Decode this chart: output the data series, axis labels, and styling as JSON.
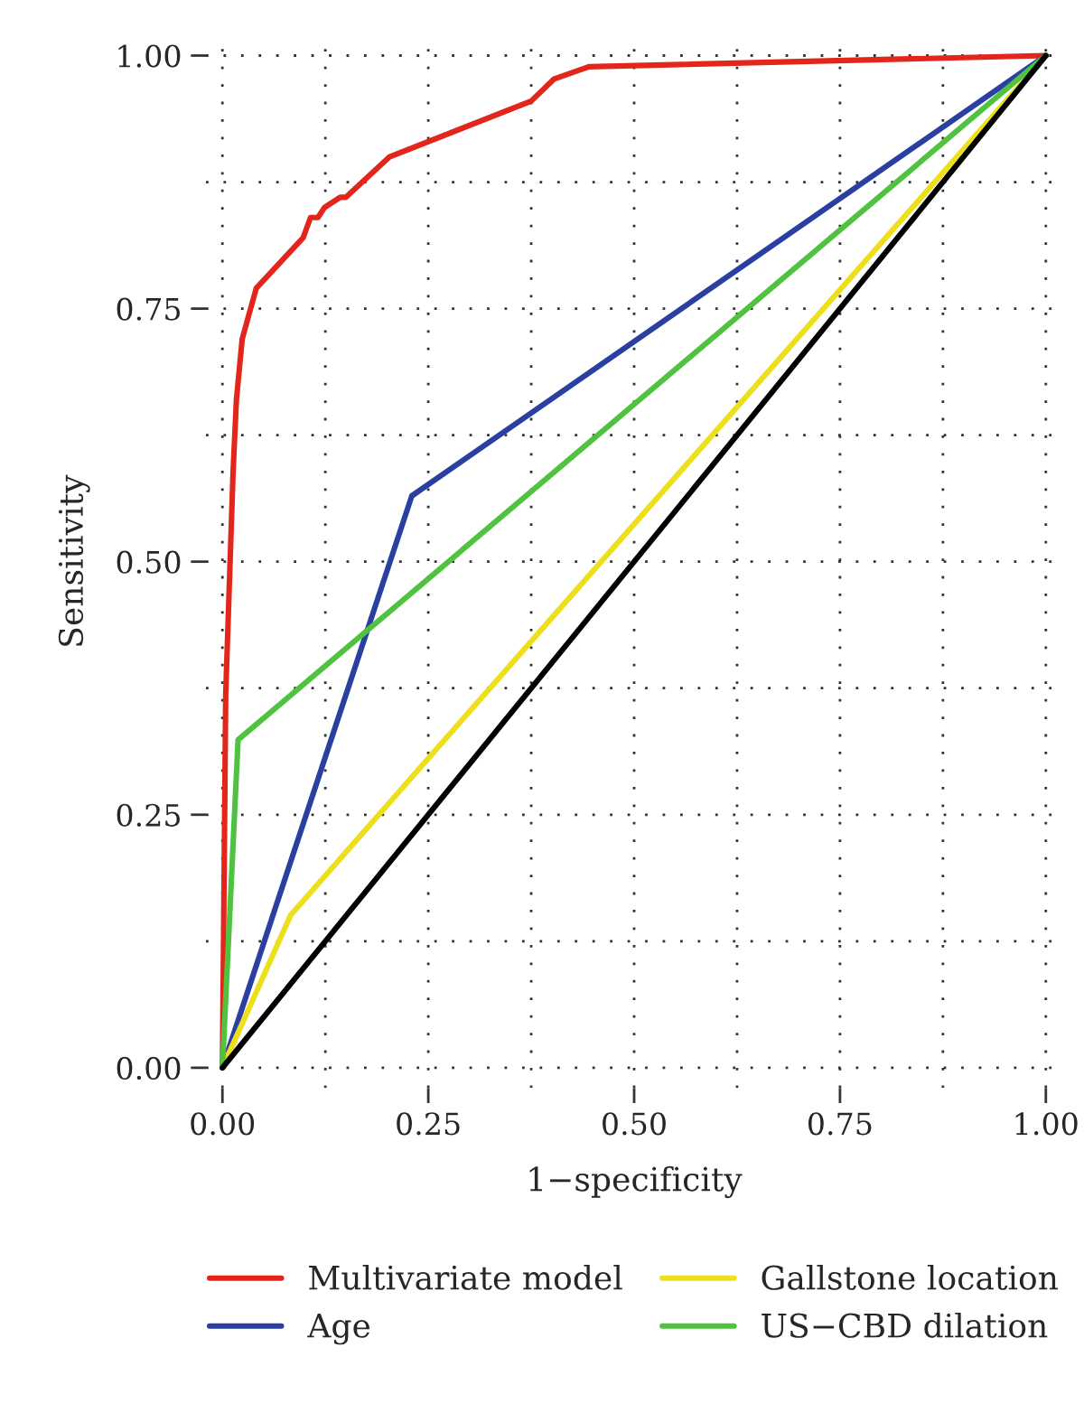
{
  "chart_data": {
    "type": "line",
    "xlabel": "1−specificity",
    "ylabel": "Sensitivity",
    "xlim": [
      -0.02,
      1.02
    ],
    "ylim": [
      -0.02,
      1.02
    ],
    "xticks": [
      {
        "value": 0,
        "label": "0.00"
      },
      {
        "value": 0.25,
        "label": "0.25"
      },
      {
        "value": 0.5,
        "label": "0.50"
      },
      {
        "value": 0.75,
        "label": "0.75"
      },
      {
        "value": 1,
        "label": "1.00"
      }
    ],
    "yticks": [
      {
        "value": 0,
        "label": "0.00"
      },
      {
        "value": 0.25,
        "label": "0.25"
      },
      {
        "value": 0.5,
        "label": "0.50"
      },
      {
        "value": 0.75,
        "label": "0.75"
      },
      {
        "value": 1,
        "label": "1.00"
      }
    ],
    "grid": true,
    "legend": "bottom",
    "line_style": "solid",
    "series": [
      {
        "name": "Multivariate model",
        "color": "#e3261c",
        "x": [
          0,
          0.004,
          0.013,
          0.017,
          0.024,
          0.041,
          0.098,
          0.107,
          0.116,
          0.124,
          0.143,
          0.15,
          0.203,
          0.375,
          0.403,
          0.445,
          1
        ],
        "values": [
          0,
          0.37,
          0.59,
          0.66,
          0.72,
          0.77,
          0.82,
          0.84,
          0.84,
          0.85,
          0.86,
          0.86,
          0.9,
          0.955,
          0.977,
          0.989,
          1
        ]
      },
      {
        "name": "Age",
        "color": "#2940a0",
        "x": [
          0,
          0.23,
          1
        ],
        "values": [
          0,
          0.565,
          1
        ]
      },
      {
        "name": "Gallstone location",
        "color": "#eddf1c",
        "x": [
          0,
          0.083,
          1
        ],
        "values": [
          0,
          0.151,
          1
        ]
      },
      {
        "name": "US−CBD dilation",
        "color": "#4fc23f",
        "x": [
          0,
          0.019,
          1
        ],
        "values": [
          0,
          0.324,
          1
        ]
      },
      {
        "color": "#000000",
        "x": [
          0,
          1
        ],
        "values": [
          0,
          1
        ]
      }
    ]
  }
}
